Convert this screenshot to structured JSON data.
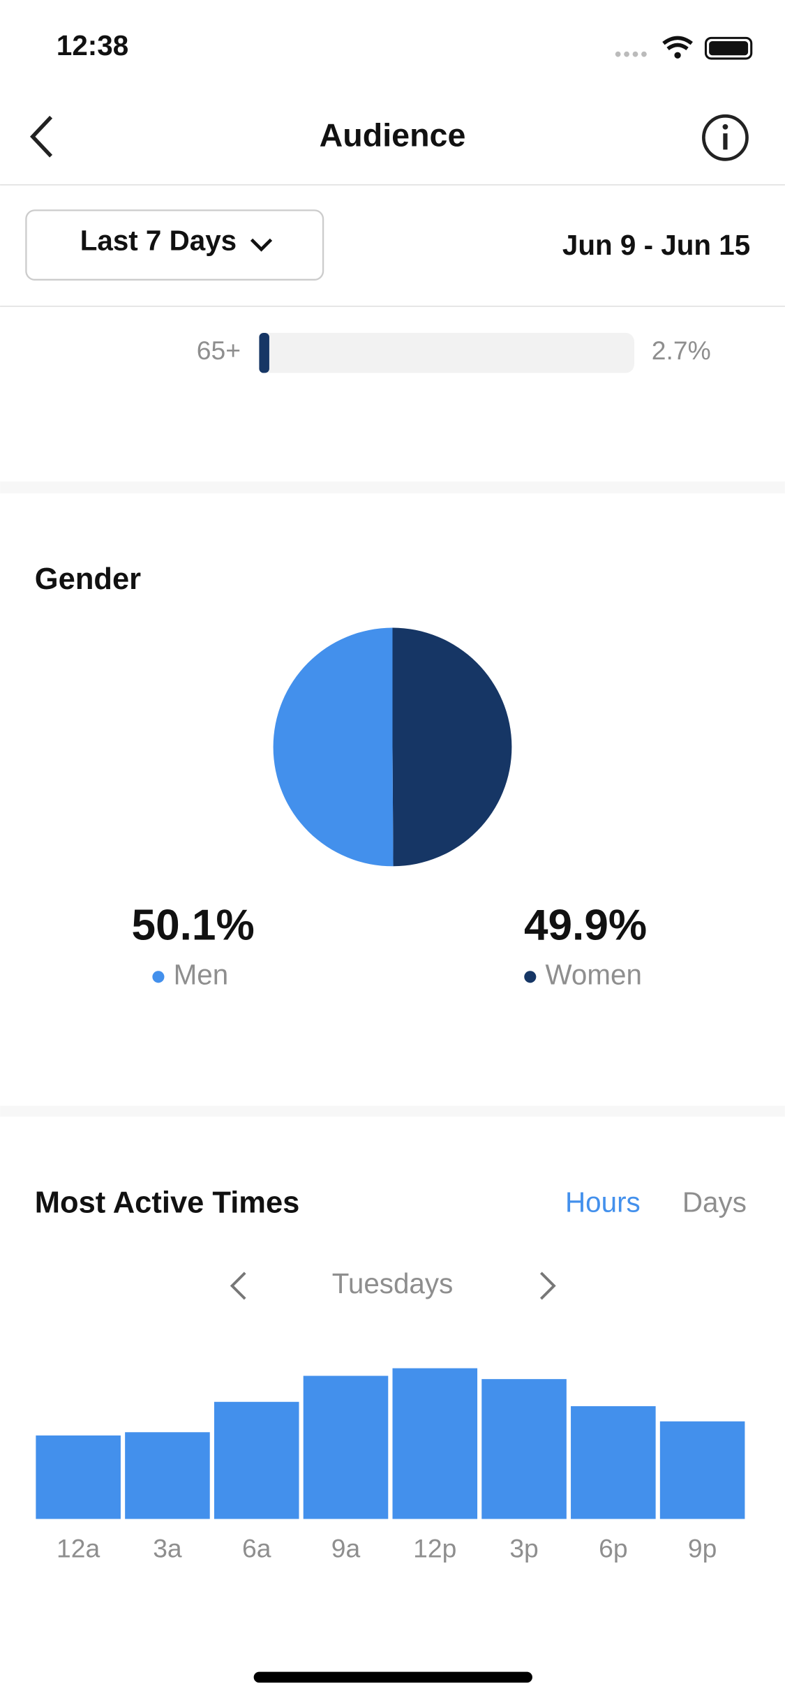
{
  "status": {
    "time": "12:38"
  },
  "header": {
    "title": "Audience"
  },
  "filter": {
    "period": "Last 7 Days",
    "range": "Jun 9 - Jun 15"
  },
  "chart_data": [
    {
      "type": "hbar",
      "categories": [
        "65+"
      ],
      "values": [
        2.7
      ],
      "value_labels": [
        "2.7%"
      ],
      "xlim": [
        0,
        100
      ],
      "color": "#163665"
    },
    {
      "type": "pie",
      "title": "Gender",
      "categories": [
        "Men",
        "Women"
      ],
      "values": [
        50.1,
        49.9
      ],
      "value_labels": [
        "50.1%",
        "49.9%"
      ],
      "colors": [
        "#4390ec",
        "#163665"
      ]
    },
    {
      "type": "bar",
      "title": "Most Active Times",
      "tabs": [
        "Hours",
        "Days"
      ],
      "day": "Tuesdays",
      "categories": [
        "12a",
        "3a",
        "6a",
        "9a",
        "12p",
        "3p",
        "6p",
        "9p"
      ],
      "values": [
        77,
        80,
        108,
        132,
        139,
        129,
        104,
        90
      ],
      "color": "#4390ec"
    }
  ]
}
